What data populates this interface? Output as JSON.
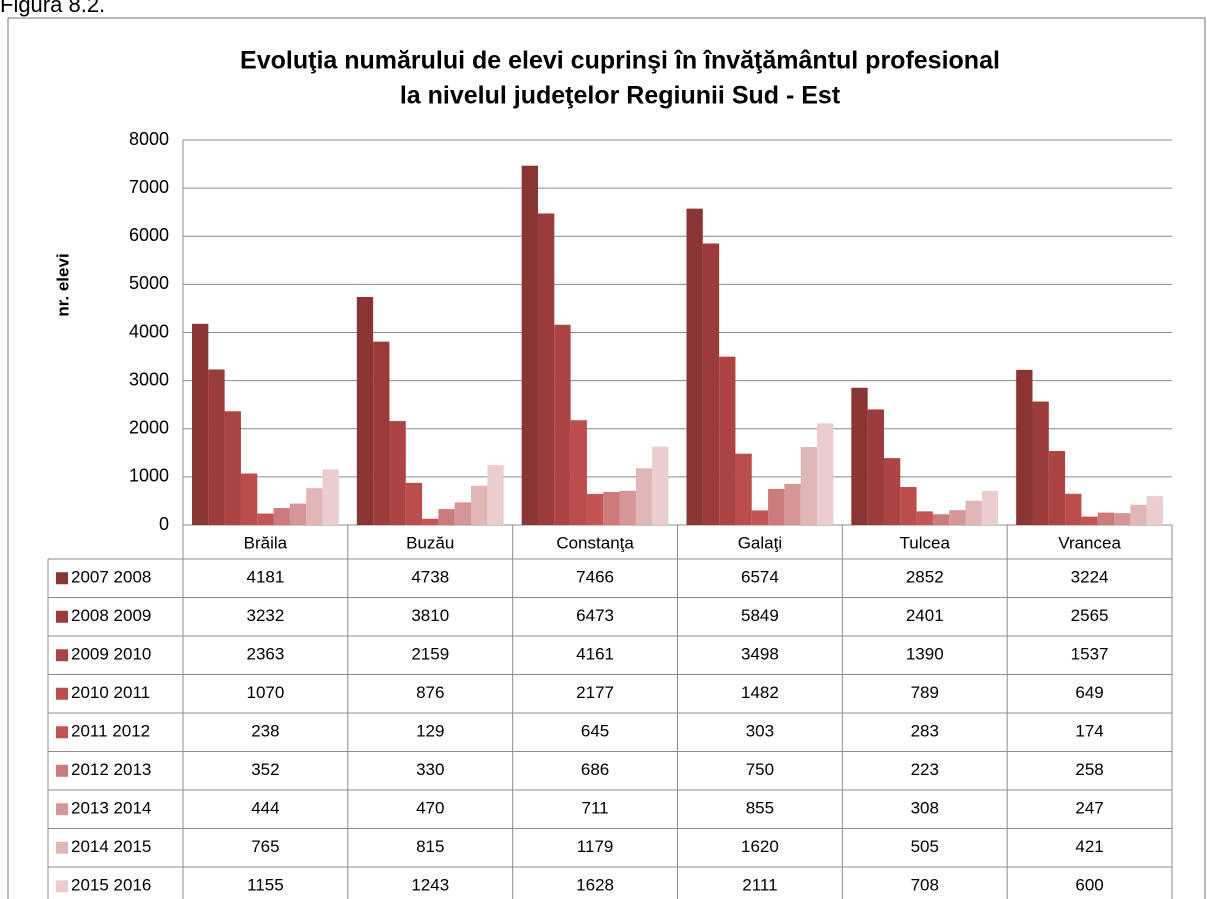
{
  "figure_label": "Figura 8.2.",
  "chart_data": {
    "type": "bar",
    "title": [
      "Evoluţia numărului de elevi cuprinşi în învăţământul profesional",
      "la nivelul judeţelor Regiunii Sud - Est"
    ],
    "y_label": "nr. elevi",
    "categories": [
      "Brăila",
      "Buzău",
      "Constanţa",
      "Galaţi",
      "Tulcea",
      "Vrancea"
    ],
    "ylim": [
      0,
      8000
    ],
    "yticks": [
      0,
      1000,
      2000,
      3000,
      4000,
      5000,
      6000,
      7000,
      8000
    ],
    "grid": true,
    "data_table": true,
    "series": [
      {
        "name": "2007 2008",
        "color": "#8a3434",
        "values": [
          4181,
          4738,
          7466,
          6574,
          2852,
          3224
        ]
      },
      {
        "name": "2008 2009",
        "color": "#9c3b3b",
        "values": [
          3232,
          3810,
          6473,
          5849,
          2401,
          2565
        ]
      },
      {
        "name": "2009 2010",
        "color": "#ad4444",
        "values": [
          2363,
          2159,
          4161,
          3498,
          1390,
          1537
        ]
      },
      {
        "name": "2010 2011",
        "color": "#bb4d4d",
        "values": [
          1070,
          876,
          2177,
          1482,
          789,
          649
        ]
      },
      {
        "name": "2011 2012",
        "color": "#c65353",
        "values": [
          238,
          129,
          645,
          303,
          283,
          174
        ]
      },
      {
        "name": "2012 2013",
        "color": "#cc7a7a",
        "values": [
          352,
          330,
          686,
          750,
          223,
          258
        ]
      },
      {
        "name": "2013 2014",
        "color": "#d49696",
        "values": [
          444,
          470,
          711,
          855,
          308,
          247
        ]
      },
      {
        "name": "2014 2015",
        "color": "#e0b6b6",
        "values": [
          765,
          815,
          1179,
          1620,
          505,
          421
        ]
      },
      {
        "name": "2015 2016",
        "color": "#ebcdcd",
        "values": [
          1155,
          1243,
          1628,
          2111,
          708,
          600
        ]
      }
    ]
  }
}
